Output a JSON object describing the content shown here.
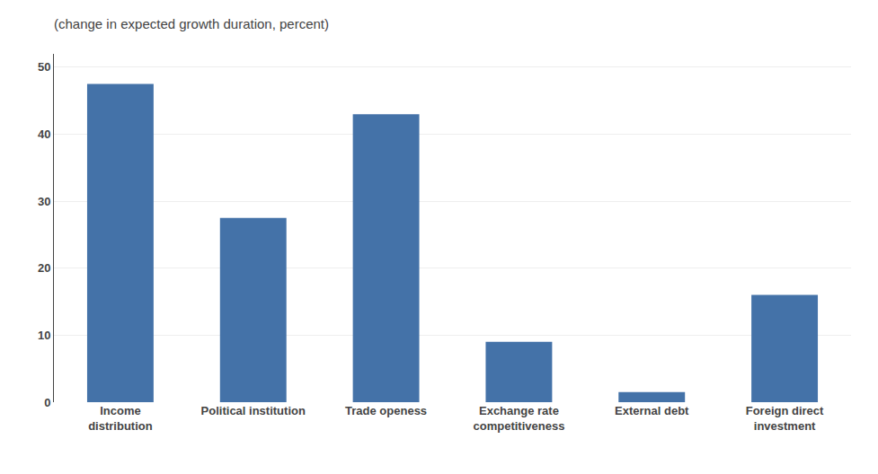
{
  "chart_data": {
    "type": "bar",
    "subtitle": "(change in expected growth duration, percent)",
    "categories": [
      "Income\ndistribution",
      "Political institution",
      "Trade openess",
      "Exchange rate\ncompetitiveness",
      "External debt",
      "Foreign direct\ninvestment"
    ],
    "values": [
      47.5,
      27.5,
      43.0,
      9.0,
      1.5,
      16.0
    ],
    "color": "#4472a8",
    "ylim": [
      0,
      52
    ],
    "yticks": [
      0,
      10,
      20,
      30,
      40,
      50
    ],
    "grid": true
  }
}
